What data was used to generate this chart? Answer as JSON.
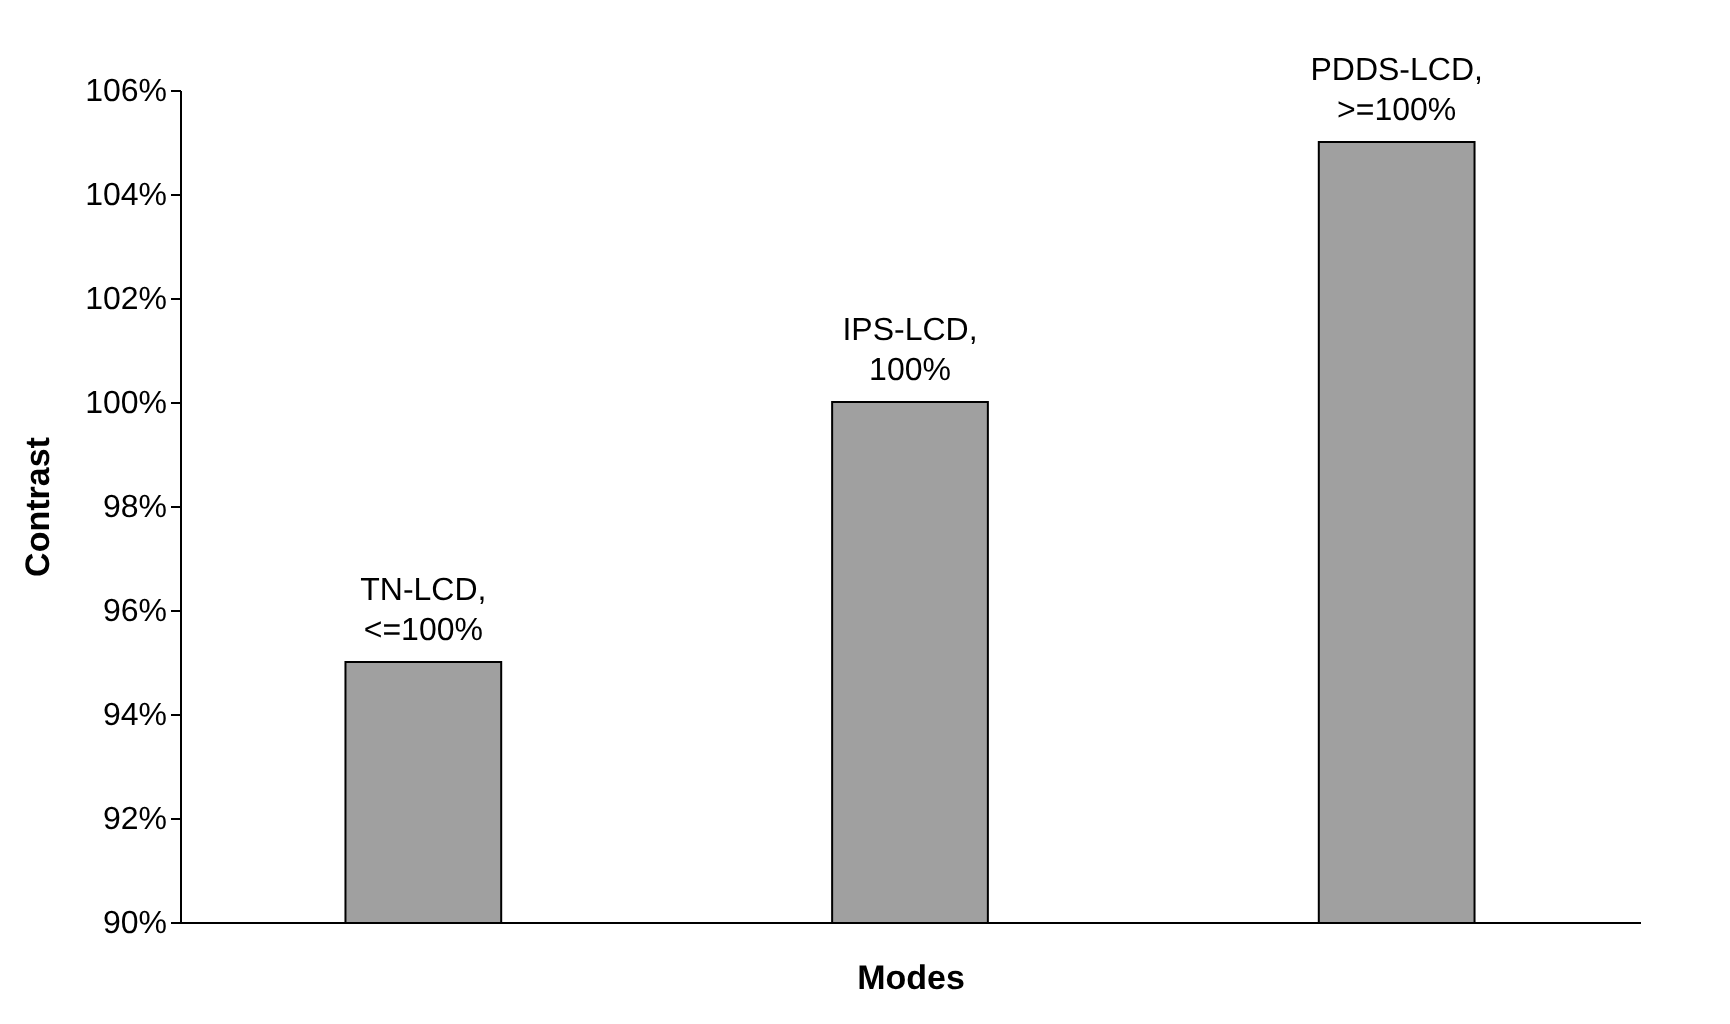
{
  "chart_data": {
    "type": "bar",
    "xlabel": "Modes",
    "ylabel": "Contrast",
    "categories": [
      null,
      null,
      null
    ],
    "values": [
      95,
      100,
      105
    ],
    "value_labels": [
      "TN-LCD, <=100%",
      "IPS-LCD, 100%",
      "PDDS-LCD, >=100%"
    ],
    "color": "#a0a0a0",
    "ylim": [
      90,
      106
    ],
    "yticks": [
      {
        "value": 90,
        "label": "90%"
      },
      {
        "value": 92,
        "label": "92%"
      },
      {
        "value": 94,
        "label": "94%"
      },
      {
        "value": 96,
        "label": "96%"
      },
      {
        "value": 98,
        "label": "98%"
      },
      {
        "value": 100,
        "label": "100%"
      },
      {
        "value": 102,
        "label": "102%"
      },
      {
        "value": 104,
        "label": "104%"
      },
      {
        "value": 106,
        "label": "106%"
      }
    ],
    "tick_labels": "y",
    "grid": false
  }
}
